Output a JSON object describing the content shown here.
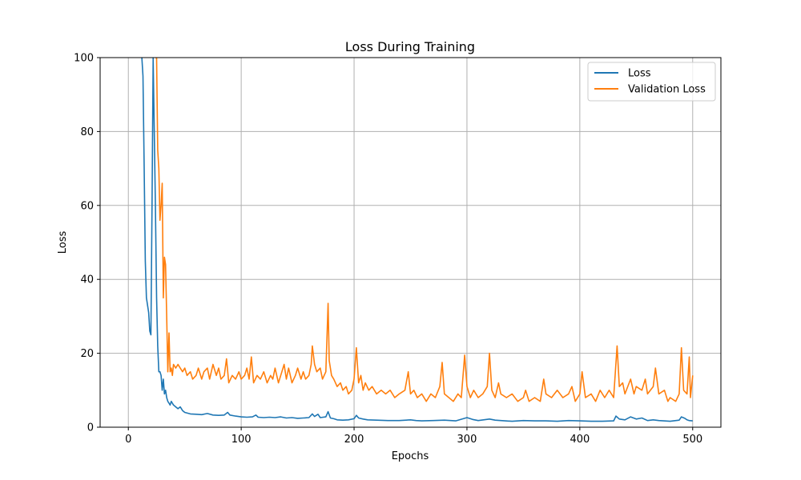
{
  "chart_data": {
    "type": "line",
    "title": "Loss During Training",
    "xlabel": "Epochs",
    "ylabel": "Loss",
    "xlim": [
      -25,
      525
    ],
    "ylim": [
      0,
      100
    ],
    "xticks": [
      0,
      100,
      200,
      300,
      400,
      500
    ],
    "yticks": [
      0,
      20,
      40,
      60,
      80,
      100
    ],
    "grid": true,
    "legend_position": "top-right",
    "series": [
      {
        "name": "Loss",
        "color": "#1f77b4",
        "points": [
          [
            12,
            100
          ],
          [
            13,
            95
          ],
          [
            14,
            70
          ],
          [
            15,
            45
          ],
          [
            16,
            35
          ],
          [
            17,
            33
          ],
          [
            18,
            31
          ],
          [
            19,
            26
          ],
          [
            20,
            25
          ],
          [
            21,
            60
          ],
          [
            22,
            100
          ],
          [
            24,
            60
          ],
          [
            25,
            35
          ],
          [
            26,
            22
          ],
          [
            27,
            15
          ],
          [
            28,
            15
          ],
          [
            29,
            14
          ],
          [
            30,
            10
          ],
          [
            31,
            13
          ],
          [
            32,
            9
          ],
          [
            33,
            10
          ],
          [
            34,
            8
          ],
          [
            35,
            7
          ],
          [
            36,
            6.5
          ],
          [
            37,
            6
          ],
          [
            38,
            7
          ],
          [
            40,
            6
          ],
          [
            42,
            5.5
          ],
          [
            44,
            5
          ],
          [
            46,
            5.5
          ],
          [
            48,
            4.5
          ],
          [
            50,
            4
          ],
          [
            55,
            3.6
          ],
          [
            60,
            3.5
          ],
          [
            65,
            3.4
          ],
          [
            70,
            3.7
          ],
          [
            75,
            3.3
          ],
          [
            80,
            3.2
          ],
          [
            85,
            3.3
          ],
          [
            88,
            4
          ],
          [
            90,
            3.3
          ],
          [
            95,
            3
          ],
          [
            100,
            2.8
          ],
          [
            105,
            2.7
          ],
          [
            110,
            2.8
          ],
          [
            113,
            3.3
          ],
          [
            115,
            2.7
          ],
          [
            120,
            2.6
          ],
          [
            125,
            2.7
          ],
          [
            130,
            2.6
          ],
          [
            135,
            2.8
          ],
          [
            140,
            2.5
          ],
          [
            145,
            2.6
          ],
          [
            150,
            2.4
          ],
          [
            155,
            2.5
          ],
          [
            160,
            2.6
          ],
          [
            163,
            3.6
          ],
          [
            165,
            2.9
          ],
          [
            168,
            3.5
          ],
          [
            170,
            2.6
          ],
          [
            175,
            2.8
          ],
          [
            177,
            4.2
          ],
          [
            179,
            2.5
          ],
          [
            182,
            2.3
          ],
          [
            185,
            2.0
          ],
          [
            190,
            1.9
          ],
          [
            195,
            2.0
          ],
          [
            200,
            2.3
          ],
          [
            202,
            3.2
          ],
          [
            204,
            2.5
          ],
          [
            208,
            2.2
          ],
          [
            212,
            2.0
          ],
          [
            220,
            1.9
          ],
          [
            230,
            1.8
          ],
          [
            240,
            1.8
          ],
          [
            250,
            2.0
          ],
          [
            255,
            1.8
          ],
          [
            260,
            1.7
          ],
          [
            270,
            1.8
          ],
          [
            280,
            1.9
          ],
          [
            290,
            1.7
          ],
          [
            300,
            2.6
          ],
          [
            305,
            2.1
          ],
          [
            310,
            1.8
          ],
          [
            320,
            2.2
          ],
          [
            325,
            1.9
          ],
          [
            330,
            1.8
          ],
          [
            340,
            1.6
          ],
          [
            350,
            1.8
          ],
          [
            360,
            1.7
          ],
          [
            370,
            1.7
          ],
          [
            380,
            1.6
          ],
          [
            390,
            1.8
          ],
          [
            400,
            1.7
          ],
          [
            410,
            1.6
          ],
          [
            420,
            1.6
          ],
          [
            430,
            1.7
          ],
          [
            432,
            3.0
          ],
          [
            435,
            2.2
          ],
          [
            440,
            2.0
          ],
          [
            445,
            2.8
          ],
          [
            450,
            2.2
          ],
          [
            455,
            2.5
          ],
          [
            460,
            1.8
          ],
          [
            465,
            2.0
          ],
          [
            470,
            1.8
          ],
          [
            480,
            1.6
          ],
          [
            488,
            1.9
          ],
          [
            490,
            2.8
          ],
          [
            493,
            2.4
          ],
          [
            495,
            2.0
          ],
          [
            497,
            1.8
          ],
          [
            500,
            1.7
          ]
        ]
      },
      {
        "name": "Validation Loss",
        "color": "#ff7f0e",
        "points": [
          [
            24,
            100
          ],
          [
            25,
            100
          ],
          [
            26,
            75
          ],
          [
            27,
            70
          ],
          [
            28,
            56
          ],
          [
            29,
            60
          ],
          [
            30,
            66
          ],
          [
            31,
            35
          ],
          [
            32,
            46
          ],
          [
            33,
            44
          ],
          [
            34,
            30
          ],
          [
            35,
            15
          ],
          [
            36,
            25.5
          ],
          [
            37,
            15
          ],
          [
            38,
            16
          ],
          [
            39,
            14
          ],
          [
            40,
            17
          ],
          [
            42,
            16
          ],
          [
            44,
            17
          ],
          [
            46,
            16
          ],
          [
            48,
            15
          ],
          [
            50,
            16
          ],
          [
            52,
            14
          ],
          [
            55,
            15
          ],
          [
            57,
            13
          ],
          [
            60,
            14
          ],
          [
            62,
            16
          ],
          [
            65,
            13
          ],
          [
            67,
            15
          ],
          [
            70,
            16
          ],
          [
            72,
            13
          ],
          [
            75,
            17
          ],
          [
            78,
            14
          ],
          [
            80,
            16
          ],
          [
            82,
            13
          ],
          [
            85,
            14
          ],
          [
            87,
            18.5
          ],
          [
            89,
            12
          ],
          [
            92,
            14
          ],
          [
            95,
            13
          ],
          [
            98,
            15
          ],
          [
            100,
            13
          ],
          [
            103,
            14
          ],
          [
            105,
            16
          ],
          [
            107,
            13
          ],
          [
            109,
            19
          ],
          [
            111,
            12
          ],
          [
            114,
            14
          ],
          [
            117,
            13
          ],
          [
            120,
            15
          ],
          [
            123,
            12
          ],
          [
            126,
            14
          ],
          [
            128,
            13
          ],
          [
            130,
            16
          ],
          [
            133,
            12
          ],
          [
            136,
            15
          ],
          [
            138,
            17
          ],
          [
            140,
            13
          ],
          [
            142,
            16
          ],
          [
            145,
            12
          ],
          [
            148,
            14
          ],
          [
            150,
            16
          ],
          [
            153,
            13
          ],
          [
            155,
            15
          ],
          [
            157,
            13
          ],
          [
            160,
            14
          ],
          [
            162,
            17
          ],
          [
            163,
            22
          ],
          [
            165,
            17
          ],
          [
            167,
            15
          ],
          [
            170,
            16
          ],
          [
            172,
            13
          ],
          [
            175,
            15
          ],
          [
            177,
            33.5
          ],
          [
            178,
            18
          ],
          [
            180,
            14
          ],
          [
            182,
            13
          ],
          [
            185,
            11
          ],
          [
            188,
            12
          ],
          [
            190,
            10
          ],
          [
            193,
            11
          ],
          [
            195,
            9
          ],
          [
            198,
            10
          ],
          [
            200,
            13
          ],
          [
            202,
            21.5
          ],
          [
            204,
            12
          ],
          [
            206,
            14
          ],
          [
            208,
            10
          ],
          [
            210,
            12
          ],
          [
            213,
            10
          ],
          [
            216,
            11
          ],
          [
            220,
            9
          ],
          [
            224,
            10
          ],
          [
            228,
            9
          ],
          [
            232,
            10
          ],
          [
            236,
            8
          ],
          [
            240,
            9
          ],
          [
            245,
            10
          ],
          [
            248,
            15
          ],
          [
            250,
            9
          ],
          [
            253,
            10
          ],
          [
            256,
            8
          ],
          [
            260,
            9
          ],
          [
            264,
            7
          ],
          [
            268,
            9
          ],
          [
            272,
            8
          ],
          [
            276,
            11
          ],
          [
            278,
            17.5
          ],
          [
            280,
            9
          ],
          [
            284,
            8
          ],
          [
            288,
            7
          ],
          [
            292,
            9
          ],
          [
            295,
            8
          ],
          [
            298,
            19.5
          ],
          [
            300,
            11
          ],
          [
            303,
            8
          ],
          [
            306,
            10
          ],
          [
            310,
            8
          ],
          [
            314,
            9
          ],
          [
            318,
            11
          ],
          [
            320,
            20
          ],
          [
            322,
            10
          ],
          [
            325,
            8
          ],
          [
            328,
            12
          ],
          [
            330,
            9
          ],
          [
            335,
            8
          ],
          [
            340,
            9
          ],
          [
            345,
            7
          ],
          [
            350,
            8
          ],
          [
            352,
            10
          ],
          [
            355,
            7
          ],
          [
            360,
            8
          ],
          [
            365,
            7
          ],
          [
            368,
            13
          ],
          [
            370,
            9
          ],
          [
            375,
            8
          ],
          [
            380,
            10
          ],
          [
            385,
            8
          ],
          [
            390,
            9
          ],
          [
            393,
            11
          ],
          [
            396,
            7
          ],
          [
            400,
            9
          ],
          [
            402,
            15
          ],
          [
            405,
            8
          ],
          [
            410,
            9
          ],
          [
            414,
            7
          ],
          [
            418,
            10
          ],
          [
            422,
            8
          ],
          [
            426,
            10
          ],
          [
            430,
            8
          ],
          [
            433,
            22
          ],
          [
            435,
            11
          ],
          [
            438,
            12
          ],
          [
            440,
            9
          ],
          [
            445,
            13
          ],
          [
            448,
            9
          ],
          [
            450,
            11
          ],
          [
            455,
            10
          ],
          [
            458,
            13
          ],
          [
            460,
            9
          ],
          [
            465,
            11
          ],
          [
            467,
            16
          ],
          [
            470,
            9
          ],
          [
            475,
            10
          ],
          [
            478,
            7
          ],
          [
            480,
            8
          ],
          [
            485,
            7
          ],
          [
            488,
            9
          ],
          [
            490,
            21.5
          ],
          [
            492,
            10
          ],
          [
            495,
            9
          ],
          [
            497,
            19
          ],
          [
            498,
            8
          ],
          [
            500,
            14
          ]
        ]
      }
    ]
  }
}
